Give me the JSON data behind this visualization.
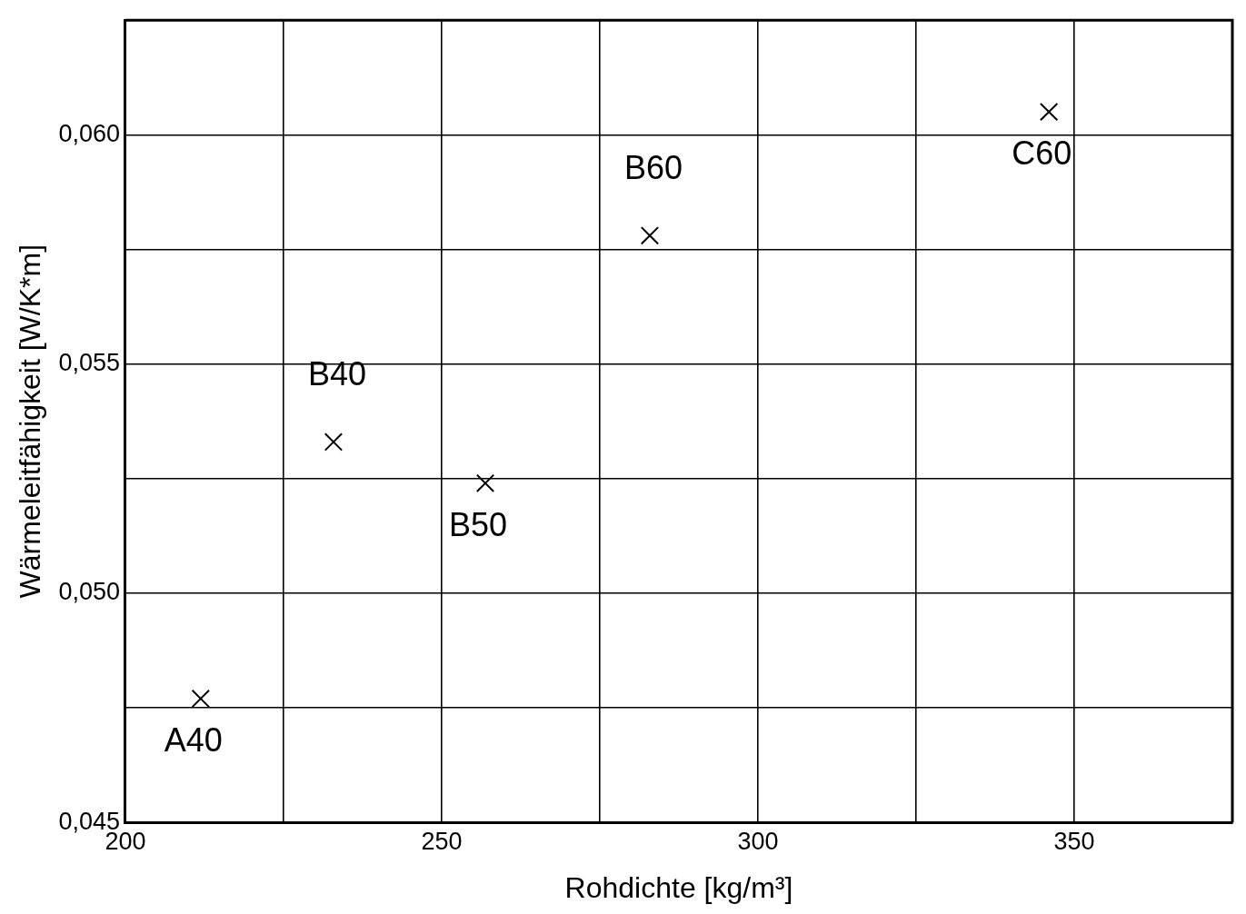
{
  "chart_data": {
    "type": "scatter",
    "xlabel": "Rohdichte [kg/m³]",
    "ylabel": "Wärmeleitfähigkeit [W/K*m]",
    "x": [
      211.9,
      232.9,
      256.9,
      282.9,
      346.0
    ],
    "values": [
      0.0477,
      0.0533,
      0.0524,
      0.0578,
      0.0605
    ],
    "color": "#000000",
    "marker": "cross",
    "xlim": [
      200,
      375
    ],
    "xticks": [
      200,
      {
        "value": 225,
        "label": null
      },
      250,
      {
        "value": 275,
        "label": null
      },
      300,
      {
        "value": 325,
        "label": null
      },
      350
    ],
    "ylim": [
      0.045,
      0.0625
    ],
    "yticks": [
      {
        "value": 0.045,
        "label": "0,045"
      },
      {
        "value": 0.0475,
        "label": null
      },
      {
        "value": 0.05,
        "label": "0,050"
      },
      {
        "value": 0.0525,
        "label": null
      },
      {
        "value": 0.055,
        "label": "0,055"
      },
      {
        "value": 0.0575,
        "label": null
      },
      {
        "value": 0.06,
        "label": "0,060"
      }
    ],
    "grid": true,
    "legend": false,
    "annotations": [
      {
        "text": "A40",
        "x": 211.9,
        "y": 0.0477
      },
      {
        "text": "B40",
        "x": 232.9,
        "y": 0.0533
      },
      {
        "text": "B50",
        "x": 256.9,
        "y": 0.0524
      },
      {
        "text": "B60",
        "x": 282.9,
        "y": 0.0578
      },
      {
        "text": "C60",
        "x": 346.0,
        "y": 0.0605
      }
    ]
  }
}
